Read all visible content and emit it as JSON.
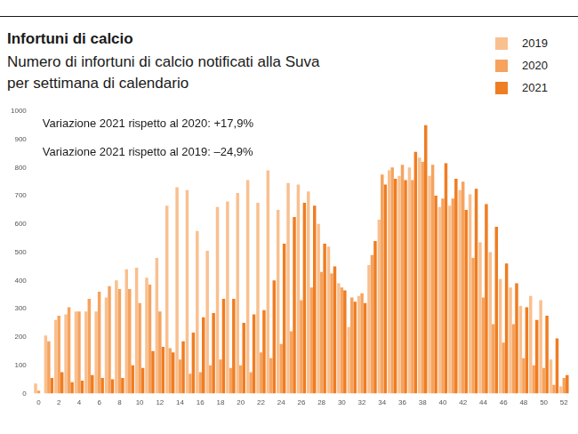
{
  "chart_data": {
    "type": "bar",
    "title": "Infortuni di calcio",
    "subtitle": [
      "Numero di infortuni di calcio notificati alla Suva",
      "per settimana di calendario"
    ],
    "annotations": [
      "Variazione 2021 rispetto al 2020: +17,9%",
      "Variazione 2021 rispetto al 2019: –24,9%"
    ],
    "categories": [
      "0",
      null,
      "2",
      null,
      "4",
      null,
      "6",
      null,
      "8",
      null,
      "10",
      null,
      "12",
      null,
      "14",
      null,
      "16",
      null,
      "18",
      null,
      "20",
      null,
      "22",
      null,
      "24",
      null,
      "26",
      null,
      "28",
      null,
      "30",
      null,
      "32",
      null,
      "34",
      null,
      "36",
      null,
      "38",
      null,
      "40",
      null,
      "42",
      null,
      "44",
      null,
      "46",
      null,
      "48",
      null,
      "50",
      null,
      "52"
    ],
    "series": [
      {
        "name": "2019",
        "color": "#f9c08f",
        "values": [
          35,
          205,
          260,
          280,
          290,
          290,
          290,
          340,
          400,
          440,
          445,
          410,
          480,
          665,
          730,
          720,
          575,
          505,
          660,
          680,
          710,
          755,
          675,
          790,
          650,
          745,
          740,
          715,
          600,
          520,
          390,
          235,
          345,
          455,
          615,
          790,
          770,
          800,
          835,
          770,
          660,
          665,
          720,
          705,
          535,
          500,
          405,
          375,
          310,
          345,
          330,
          120,
          25
        ]
      },
      {
        "name": "2020",
        "color": "#f5a35f",
        "values": [
          10,
          185,
          275,
          305,
          290,
          335,
          360,
          380,
          370,
          370,
          320,
          385,
          290,
          160,
          120,
          70,
          75,
          100,
          120,
          90,
          100,
          75,
          145,
          125,
          175,
          220,
          330,
          375,
          430,
          425,
          375,
          340,
          355,
          490,
          775,
          800,
          810,
          755,
          820,
          810,
          690,
          690,
          750,
          480,
          340,
          245,
          180,
          245,
          125,
          100,
          90,
          30,
          55
        ]
      },
      {
        "name": "2021",
        "color": "#ef7d22",
        "values": [
          0,
          55,
          75,
          40,
          45,
          65,
          55,
          50,
          55,
          100,
          90,
          150,
          165,
          145,
          185,
          215,
          270,
          285,
          335,
          335,
          250,
          280,
          295,
          400,
          530,
          625,
          675,
          665,
          530,
          450,
          365,
          325,
          320,
          540,
          740,
          760,
          755,
          855,
          950,
          700,
          815,
          760,
          650,
          725,
          670,
          590,
          460,
          390,
          305,
          260,
          275,
          195,
          65
        ]
      }
    ],
    "ylim": [
      0,
      1000
    ],
    "yticks": [
      0,
      100,
      200,
      300,
      400,
      500,
      600,
      700,
      800,
      900,
      1000
    ],
    "grid": false,
    "legend": "top right"
  }
}
